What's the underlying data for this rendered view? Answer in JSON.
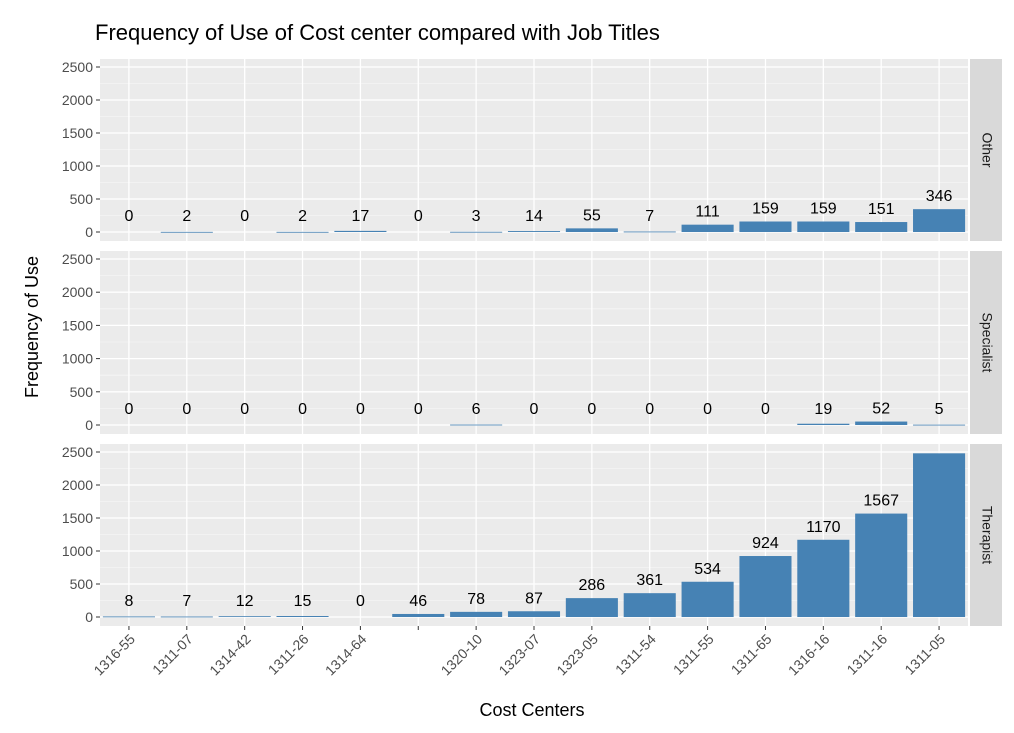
{
  "chart_data": {
    "type": "bar",
    "title": "Frequency of Use of Cost center compared with Job Titles",
    "xlabel": "Cost Centers",
    "ylabel": "Frequency of Use",
    "categories": [
      "1316-55",
      "1311-07",
      "1314-42",
      "1311-26",
      "1314-64",
      "",
      "1320-10",
      "1323-07",
      "1323-05",
      "1311-54",
      "1311-55",
      "1311-65",
      "1316-16",
      "1311-16",
      "1311-05"
    ],
    "ylim": [
      0,
      2500
    ],
    "yticks": [
      0,
      500,
      1000,
      1500,
      2000,
      2500
    ],
    "grid": true,
    "bar_color": "#4682b4",
    "panel_background": "#ebebeb",
    "strip_background": "#d9d9d9",
    "facets": [
      {
        "name": "Other",
        "values": [
          0,
          2,
          0,
          2,
          17,
          0,
          3,
          14,
          55,
          7,
          111,
          159,
          159,
          151,
          346
        ]
      },
      {
        "name": "Specialist",
        "values": [
          0,
          0,
          0,
          0,
          0,
          0,
          6,
          0,
          0,
          0,
          0,
          0,
          19,
          52,
          5
        ]
      },
      {
        "name": "Therapist",
        "values": [
          8,
          7,
          12,
          15,
          0,
          46,
          78,
          87,
          286,
          361,
          534,
          924,
          1170,
          1567,
          2480
        ]
      }
    ],
    "data_labels": [
      [
        "0",
        "2",
        "0",
        "2",
        "17",
        "0",
        "3",
        "14",
        "55",
        "7",
        "111",
        "159",
        "159",
        "151",
        "346"
      ],
      [
        "0",
        "0",
        "0",
        "0",
        "0",
        "0",
        "6",
        "0",
        "0",
        "0",
        "0",
        "0",
        "19",
        "52",
        "5"
      ],
      [
        "8",
        "7",
        "12",
        "15",
        "0",
        "46",
        "78",
        "87",
        "286",
        "361",
        "534",
        "924",
        "1170",
        "1567",
        ""
      ]
    ]
  }
}
